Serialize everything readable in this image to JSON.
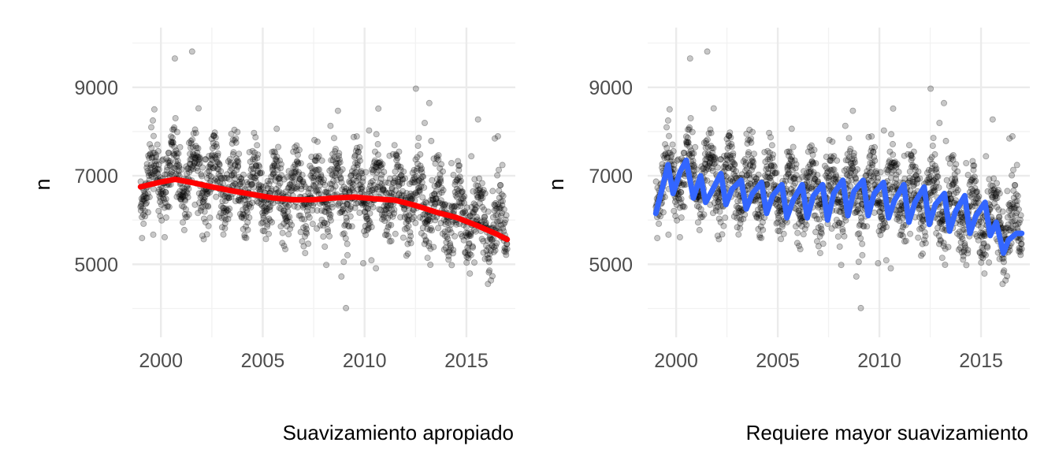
{
  "chart_data": [
    {
      "type": "scatter",
      "title": "",
      "xlabel": "",
      "ylabel": "n",
      "caption": "Suavizamiento apropiado",
      "xlim": [
        1998.6,
        2017.4
      ],
      "ylim": [
        3350,
        10350
      ],
      "x_ticks": [
        2000,
        2005,
        2010,
        2015
      ],
      "x_tick_labels": [
        "2000",
        "2005",
        "2010",
        "2015"
      ],
      "y_ticks": [
        5000,
        7000,
        9000
      ],
      "y_tick_labels": [
        "5000",
        "7000",
        "9000"
      ],
      "grid": true,
      "legend": "none",
      "points_color": "#000000",
      "smooth": {
        "color": "#ff0000",
        "x": [
          1999.0,
          2000.0,
          2000.7,
          2001.5,
          2002.5,
          2003.5,
          2004.5,
          2005.5,
          2006.5,
          2007.5,
          2008.5,
          2009.5,
          2010.5,
          2011.5,
          2012.5,
          2013.5,
          2014.5,
          2015.5,
          2016.5,
          2017.0
        ],
        "y": [
          6750,
          6860,
          6920,
          6850,
          6750,
          6660,
          6580,
          6500,
          6460,
          6460,
          6500,
          6520,
          6480,
          6450,
          6330,
          6180,
          6060,
          5880,
          5680,
          5560
        ]
      }
    },
    {
      "type": "scatter",
      "title": "",
      "xlabel": "",
      "ylabel": "n",
      "caption": "Requiere mayor suavizamiento",
      "xlim": [
        1998.6,
        2017.4
      ],
      "ylim": [
        3350,
        10350
      ],
      "x_ticks": [
        2000,
        2005,
        2010,
        2015
      ],
      "x_tick_labels": [
        "2000",
        "2005",
        "2010",
        "2015"
      ],
      "y_ticks": [
        5000,
        7000,
        9000
      ],
      "y_tick_labels": [
        "5000",
        "7000",
        "9000"
      ],
      "grid": true,
      "legend": "none",
      "points_color": "#000000",
      "smooth": {
        "color": "#3366ff",
        "x": [
          1999.0,
          1999.3,
          1999.6,
          1999.85,
          2000.2,
          2000.5,
          2000.85,
          2001.2,
          2001.45,
          2001.75,
          2002.2,
          2002.45,
          2002.75,
          2003.2,
          2003.45,
          2003.75,
          2004.2,
          2004.45,
          2004.75,
          2005.2,
          2005.45,
          2005.75,
          2006.2,
          2006.45,
          2006.75,
          2007.2,
          2007.45,
          2007.75,
          2008.2,
          2008.45,
          2008.75,
          2009.2,
          2009.45,
          2009.75,
          2010.2,
          2010.45,
          2010.75,
          2011.2,
          2011.45,
          2011.75,
          2012.2,
          2012.45,
          2012.75,
          2013.2,
          2013.45,
          2013.75,
          2014.2,
          2014.45,
          2014.75,
          2015.2,
          2015.45,
          2015.75,
          2016.1,
          2016.35,
          2016.75,
          2017.0
        ],
        "y": [
          6150,
          6700,
          7250,
          6600,
          7100,
          7350,
          6500,
          7000,
          6400,
          6650,
          7050,
          6350,
          6700,
          6900,
          6250,
          6600,
          6850,
          6150,
          6550,
          6800,
          6050,
          6450,
          6800,
          6050,
          6550,
          6800,
          6000,
          6600,
          6900,
          6100,
          6650,
          6900,
          6100,
          6600,
          6850,
          6050,
          6450,
          6800,
          5950,
          6400,
          6750,
          5900,
          6350,
          6600,
          5750,
          6200,
          6550,
          5700,
          6100,
          6400,
          5650,
          5950,
          5250,
          5550,
          5700,
          5700
        ]
      }
    }
  ]
}
